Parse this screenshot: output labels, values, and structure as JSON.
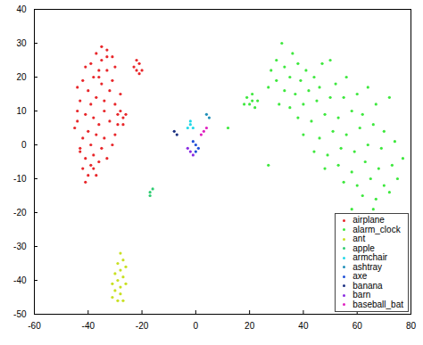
{
  "chart_data": {
    "type": "scatter",
    "legend": "lower right",
    "grid": false,
    "xlim": [
      -60,
      80
    ],
    "xticks": [
      -60,
      -40,
      -20,
      0,
      20,
      40,
      60,
      80
    ],
    "ylim": [
      -50,
      40
    ],
    "yticks": [
      -50,
      -40,
      -30,
      -20,
      -10,
      0,
      10,
      20,
      30,
      40
    ],
    "series": [
      {
        "name": "airplane",
        "color": "#e8262a",
        "marker": "dot",
        "values": [
          [
            -35,
            29
          ],
          [
            -33,
            28
          ],
          [
            -37,
            27
          ],
          [
            -31,
            26
          ],
          [
            -35,
            25
          ],
          [
            -39,
            24
          ],
          [
            -41,
            23
          ],
          [
            -36,
            22
          ],
          [
            -33,
            22
          ],
          [
            -30,
            23
          ],
          [
            -38,
            20
          ],
          [
            -42,
            19
          ],
          [
            -44,
            17
          ],
          [
            -40,
            16
          ],
          [
            -35,
            18
          ],
          [
            -31,
            19
          ],
          [
            -37,
            14
          ],
          [
            -43,
            13
          ],
          [
            -39,
            12
          ],
          [
            -34,
            13
          ],
          [
            -30,
            12
          ],
          [
            -41,
            9
          ],
          [
            -38,
            8
          ],
          [
            -44,
            7
          ],
          [
            -36,
            6
          ],
          [
            -32,
            7
          ],
          [
            -29,
            9
          ],
          [
            -27,
            8
          ],
          [
            -40,
            4
          ],
          [
            -42,
            2
          ],
          [
            -37,
            3
          ],
          [
            -34,
            2
          ],
          [
            -30,
            3
          ],
          [
            -39,
            0
          ],
          [
            -43,
            -1
          ],
          [
            -35,
            -1
          ],
          [
            -31,
            0
          ],
          [
            -41,
            -4
          ],
          [
            -38,
            -3
          ],
          [
            -36,
            -5
          ],
          [
            -33,
            -4
          ],
          [
            -42,
            -7
          ],
          [
            -40,
            -9
          ],
          [
            -38,
            -7
          ],
          [
            -41,
            -11
          ],
          [
            -43,
            -2
          ],
          [
            -45,
            5
          ],
          [
            -44,
            10
          ],
          [
            -32,
            16
          ],
          [
            -28,
            15
          ],
          [
            -29,
            6
          ],
          [
            -26,
            9
          ],
          [
            -28,
            10
          ],
          [
            -27,
            6
          ],
          [
            -22,
            25
          ],
          [
            -21,
            24
          ],
          [
            -23,
            23
          ],
          [
            -20,
            22
          ],
          [
            -22,
            22
          ],
          [
            -21,
            21
          ],
          [
            -33,
            26
          ],
          [
            -36,
            20
          ],
          [
            -34,
            10
          ],
          [
            -37,
            -9
          ],
          [
            -39,
            -6
          ]
        ]
      },
      {
        "name": "alarm_clock",
        "color": "#3ee83e",
        "marker": "dot",
        "values": [
          [
            32,
            30
          ],
          [
            36,
            27
          ],
          [
            30,
            25
          ],
          [
            33,
            23
          ],
          [
            38,
            24
          ],
          [
            28,
            22
          ],
          [
            41,
            22
          ],
          [
            35,
            20
          ],
          [
            30,
            19
          ],
          [
            39,
            19
          ],
          [
            44,
            20
          ],
          [
            47,
            24
          ],
          [
            50,
            25
          ],
          [
            27,
            17
          ],
          [
            33,
            16
          ],
          [
            37,
            15
          ],
          [
            42,
            16
          ],
          [
            46,
            17
          ],
          [
            52,
            18
          ],
          [
            56,
            20
          ],
          [
            31,
            12
          ],
          [
            35,
            11
          ],
          [
            40,
            12
          ],
          [
            45,
            13
          ],
          [
            50,
            14
          ],
          [
            55,
            14
          ],
          [
            60,
            15
          ],
          [
            64,
            17
          ],
          [
            38,
            8
          ],
          [
            43,
            7
          ],
          [
            48,
            9
          ],
          [
            53,
            8
          ],
          [
            58,
            10
          ],
          [
            62,
            9
          ],
          [
            67,
            12
          ],
          [
            72,
            14
          ],
          [
            40,
            3
          ],
          [
            46,
            2
          ],
          [
            51,
            4
          ],
          [
            56,
            3
          ],
          [
            61,
            5
          ],
          [
            66,
            6
          ],
          [
            70,
            4
          ],
          [
            44,
            -2
          ],
          [
            49,
            -3
          ],
          [
            54,
            -1
          ],
          [
            59,
            -2
          ],
          [
            64,
            0
          ],
          [
            69,
            -1
          ],
          [
            74,
            1
          ],
          [
            48,
            -7
          ],
          [
            53,
            -6
          ],
          [
            58,
            -8
          ],
          [
            63,
            -5
          ],
          [
            68,
            -7
          ],
          [
            73,
            -6
          ],
          [
            77,
            -4
          ],
          [
            55,
            -11
          ],
          [
            60,
            -12
          ],
          [
            65,
            -10
          ],
          [
            70,
            -12
          ],
          [
            75,
            -10
          ],
          [
            62,
            -15
          ],
          [
            67,
            -16
          ],
          [
            72,
            -14
          ],
          [
            58,
            -19
          ],
          [
            66,
            -19
          ],
          [
            19,
            14
          ],
          [
            21,
            13
          ],
          [
            20,
            12
          ],
          [
            22,
            11
          ],
          [
            18,
            12
          ],
          [
            21,
            15
          ],
          [
            23,
            13
          ],
          [
            27,
            -6
          ],
          [
            12,
            5
          ]
        ]
      },
      {
        "name": "ant",
        "color": "#c8e021",
        "marker": "dot",
        "values": [
          [
            -28,
            -32
          ],
          [
            -27,
            -34
          ],
          [
            -29,
            -35
          ],
          [
            -26,
            -36
          ],
          [
            -28,
            -37
          ],
          [
            -30,
            -38
          ],
          [
            -27,
            -39
          ],
          [
            -29,
            -40
          ],
          [
            -31,
            -41
          ],
          [
            -28,
            -42
          ],
          [
            -26,
            -41
          ],
          [
            -30,
            -43
          ],
          [
            -28,
            -44
          ],
          [
            -27,
            -46
          ],
          [
            -29,
            -46
          ],
          [
            -31,
            -45
          ]
        ]
      },
      {
        "name": "apple",
        "color": "#2ecc71",
        "marker": "dot",
        "values": [
          [
            -17,
            -14
          ],
          [
            -17,
            -15
          ],
          [
            -16,
            -13
          ]
        ]
      },
      {
        "name": "armchair",
        "color": "#22d8e8",
        "marker": "dot",
        "values": [
          [
            -2,
            7
          ],
          [
            -2,
            6
          ],
          [
            -1,
            5
          ],
          [
            -3,
            5
          ]
        ]
      },
      {
        "name": "ashtray",
        "color": "#1f8fb8",
        "marker": "dot",
        "values": [
          [
            4,
            9
          ],
          [
            5,
            8
          ]
        ]
      },
      {
        "name": "axe",
        "color": "#1f4fd8",
        "marker": "dot",
        "values": [
          [
            0,
            0
          ],
          [
            1,
            -1
          ],
          [
            -1,
            1
          ],
          [
            0,
            -2
          ]
        ]
      },
      {
        "name": "banana",
        "color": "#1a2f80",
        "marker": "dot",
        "values": [
          [
            -8,
            4
          ],
          [
            -7,
            3
          ]
        ]
      },
      {
        "name": "barn",
        "color": "#8a2be2",
        "marker": "dot",
        "values": [
          [
            -2,
            -2
          ],
          [
            -3,
            -1
          ],
          [
            -1,
            -3
          ]
        ]
      },
      {
        "name": "baseball_bat",
        "color": "#e020c0",
        "marker": "dot",
        "values": [
          [
            3,
            4
          ],
          [
            2,
            3
          ],
          [
            4,
            5
          ]
        ]
      }
    ]
  }
}
